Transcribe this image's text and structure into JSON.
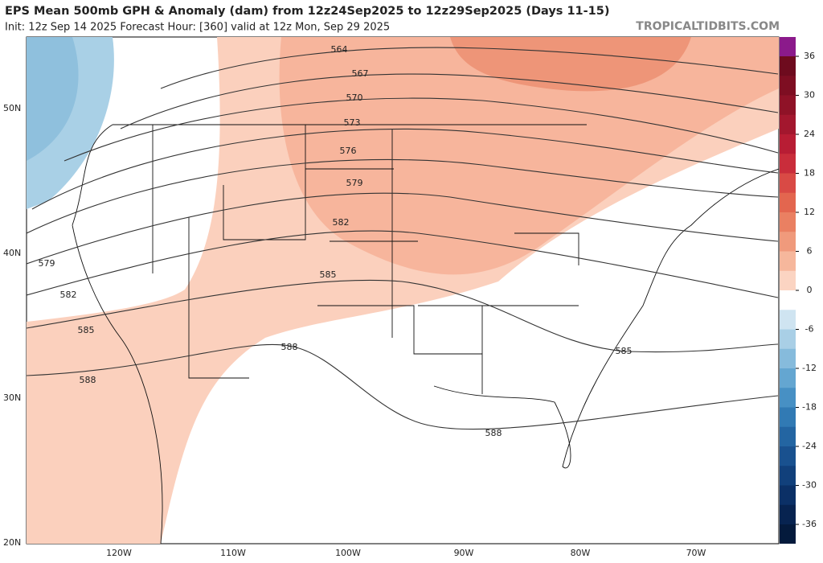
{
  "header": {
    "title": "EPS Mean 500mb GPH & Anomaly (dam) from 12z24Sep2025 to 12z29Sep2025 (Days 11-15)",
    "subtitle": "Init: 12z Sep 14 2025   Forecast Hour: [360]   valid at 12z Mon, Sep 29 2025",
    "site": "TROPICALTIDBITS.COM"
  },
  "map": {
    "lat_labels": [
      "50N",
      "40N",
      "30N",
      "20N"
    ],
    "lon_labels": [
      "120W",
      "110W",
      "100W",
      "90W",
      "80W",
      "70W"
    ],
    "contour_labels": [
      "564",
      "567",
      "570",
      "573",
      "576",
      "579",
      "582",
      "585",
      "588",
      "579",
      "582",
      "585",
      "588",
      "585",
      "588"
    ]
  },
  "colorbar": {
    "ticks": [
      36,
      30,
      24,
      18,
      12,
      6,
      0,
      -6,
      -12,
      -18,
      -24,
      -30,
      -36
    ],
    "range": [
      36,
      -36
    ]
  }
}
